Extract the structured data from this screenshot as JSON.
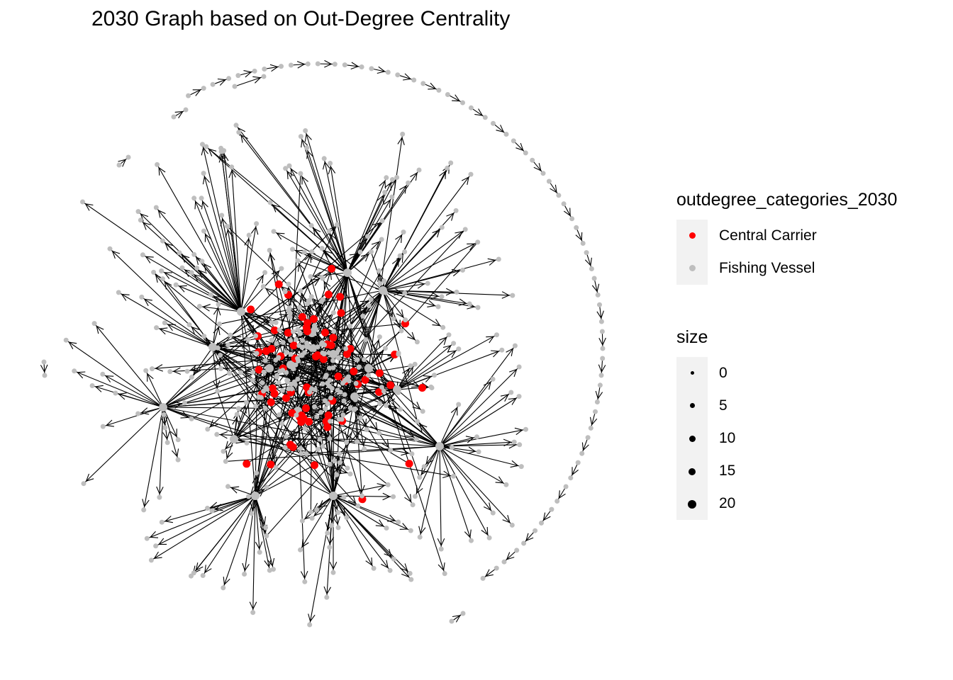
{
  "title": "2030 Graph based on Out-Degree Centrality",
  "legend": {
    "color_title": "outdegree_categories_2030",
    "color_items": [
      {
        "label": "Central Carrier",
        "color": "#ff0000"
      },
      {
        "label": "Fishing Vessel",
        "color": "#bebebe"
      }
    ],
    "size_title": "size",
    "size_items": [
      "0",
      "5",
      "10",
      "15",
      "20"
    ],
    "size_color": "#000000"
  },
  "graph": {
    "edge_color": "#000000",
    "arrow_style": "open-arrowhead",
    "layout": "force-directed",
    "node_categories": [
      "Central Carrier",
      "Fishing Vessel"
    ]
  }
}
